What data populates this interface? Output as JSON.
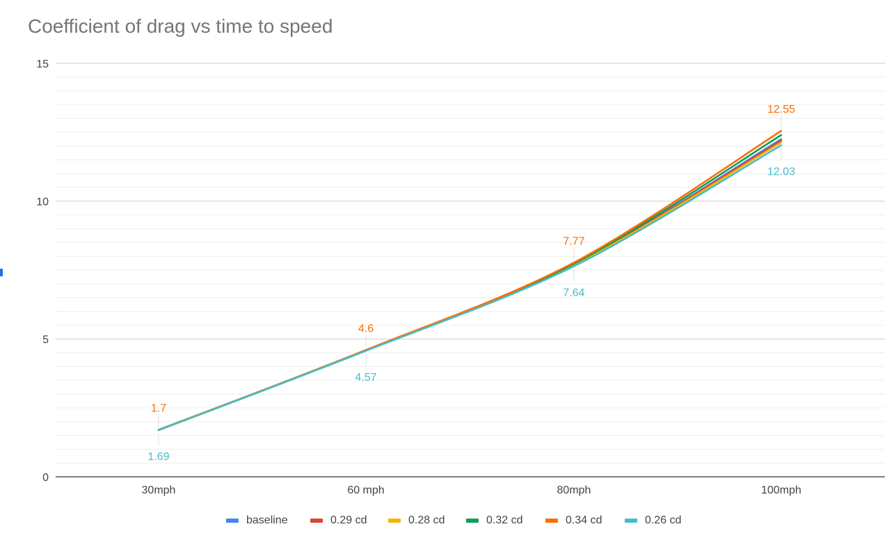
{
  "chart_data": {
    "type": "line",
    "title": "Coefficient of drag vs time to speed",
    "xlabel": "",
    "ylabel": "",
    "categories": [
      "30mph",
      "60 mph",
      "80mph",
      "100mph"
    ],
    "ylim": [
      0,
      15
    ],
    "yticks": [
      0,
      5,
      10,
      15
    ],
    "minor_gridlines": true,
    "legend_position": "bottom",
    "series": [
      {
        "name": "baseline",
        "color": "#4285f4",
        "values": [
          1.7,
          4.58,
          7.7,
          12.25
        ]
      },
      {
        "name": "0.29 cd",
        "color": "#db4437",
        "values": [
          1.7,
          4.58,
          7.7,
          12.2
        ]
      },
      {
        "name": "0.28 cd",
        "color": "#f4b400",
        "values": [
          1.69,
          4.58,
          7.68,
          12.13
        ]
      },
      {
        "name": "0.32 cd",
        "color": "#0f9d58",
        "values": [
          1.7,
          4.59,
          7.73,
          12.4
        ]
      },
      {
        "name": "0.34 cd",
        "color": "#ff6d01",
        "values": [
          1.7,
          4.6,
          7.77,
          12.55
        ]
      },
      {
        "name": "0.26 cd",
        "color": "#46bdc6",
        "values": [
          1.69,
          4.57,
          7.64,
          12.03
        ]
      }
    ],
    "data_labels": [
      {
        "series": "0.34 cd",
        "position": "above",
        "color": "#ff6d01",
        "texts": [
          "1.7",
          "4.6",
          "7.77",
          "12.55"
        ]
      },
      {
        "series": "0.26 cd",
        "position": "below",
        "color": "#46bdc6",
        "texts": [
          "1.69",
          "4.57",
          "7.64",
          "12.03"
        ]
      }
    ]
  }
}
